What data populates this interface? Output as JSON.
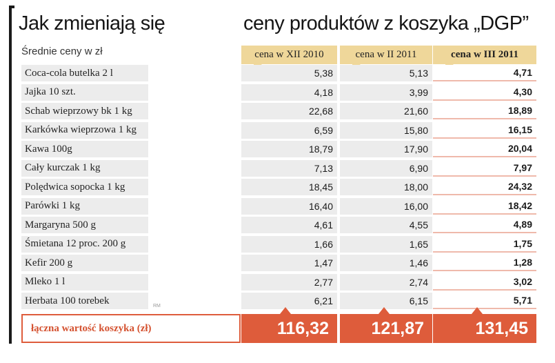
{
  "header": {
    "title_left": "Jak zmieniają się",
    "title_right": "ceny produktów z koszyka „DGP”",
    "subtitle": "Średnie ceny w zł",
    "source_mark": "RM"
  },
  "colors": {
    "header_bg": "#efd79a",
    "cell_bg": "#ececec",
    "accent": "#de5c3b",
    "row_line": "#efb9ab"
  },
  "chart_data": {
    "type": "table",
    "title": "Jak zmieniają się ceny produktów z koszyka „DGP”",
    "subtitle": "Średnie ceny w zł",
    "columns": [
      "cena w XII 2010",
      "cena w II 2011",
      "cena w III 2011"
    ],
    "rows": [
      {
        "product": "Coca-cola butelka 2 l",
        "values": [
          "5,38",
          "5,13",
          "4,71"
        ]
      },
      {
        "product": "Jajka 10 szt.",
        "values": [
          "4,18",
          "3,99",
          "4,30"
        ]
      },
      {
        "product": "Schab wieprzowy bk 1 kg",
        "values": [
          "22,68",
          "21,60",
          "18,89"
        ]
      },
      {
        "product": "Karkówka wieprzowa 1 kg",
        "values": [
          "6,59",
          "15,80",
          "16,15"
        ]
      },
      {
        "product": "Kawa 100g",
        "values": [
          "18,79",
          "17,90",
          "20,04"
        ]
      },
      {
        "product": "Cały kurczak 1 kg",
        "values": [
          "7,13",
          "6,90",
          "7,97"
        ]
      },
      {
        "product": "Polędwica sopocka 1 kg",
        "values": [
          "18,45",
          "18,00",
          "24,32"
        ]
      },
      {
        "product": "Parówki 1 kg",
        "values": [
          "16,40",
          "16,00",
          "18,42"
        ]
      },
      {
        "product": "Margaryna  500 g",
        "values": [
          "4,61",
          "4,55",
          "4,89"
        ]
      },
      {
        "product": "Śmietana 12 proc. 200 g",
        "values": [
          "1,66",
          "1,65",
          "1,75"
        ]
      },
      {
        "product": "Kefir 200 g",
        "values": [
          "1,47",
          "1,46",
          "1,28"
        ]
      },
      {
        "product": "Mleko 1 l",
        "values": [
          "2,77",
          "2,74",
          "3,02"
        ]
      },
      {
        "product": "Herbata  100 torebek",
        "values": [
          "6,21",
          "6,15",
          "5,71"
        ]
      }
    ],
    "total": {
      "label": "łączna wartość koszyka (zł)",
      "values": [
        "116,32",
        "121,87",
        "131,45"
      ]
    }
  }
}
